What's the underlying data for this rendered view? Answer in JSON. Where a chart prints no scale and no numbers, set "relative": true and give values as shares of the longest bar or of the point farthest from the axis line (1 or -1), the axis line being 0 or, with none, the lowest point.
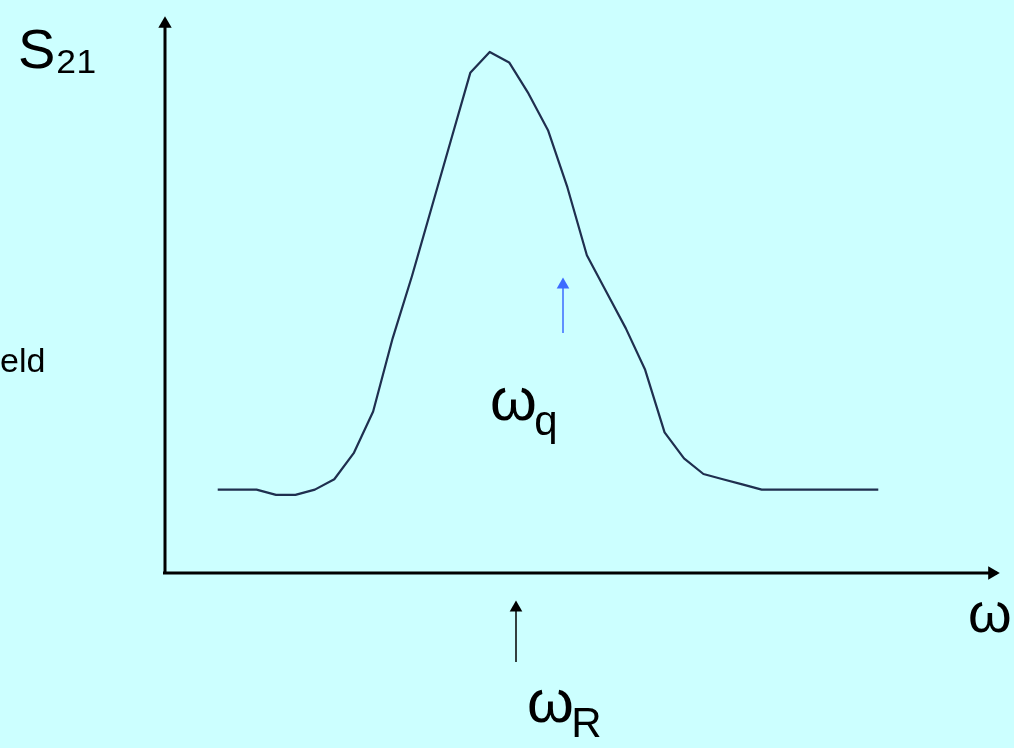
{
  "chart_data": {
    "type": "line",
    "relative": true,
    "ylabel": "S₂₁",
    "xlabel": "ω",
    "categories": [
      null,
      null,
      null,
      null,
      null,
      null,
      null,
      null,
      null,
      null,
      null,
      null,
      null,
      null,
      null,
      null,
      null,
      null,
      null,
      null,
      null,
      null,
      null,
      null,
      null,
      null,
      null,
      null,
      null,
      null,
      null,
      null,
      null,
      null,
      null
    ],
    "values": [
      0.16,
      0.16,
      0.16,
      0.15,
      0.15,
      0.16,
      0.18,
      0.23,
      0.31,
      0.45,
      0.57,
      0.7,
      0.83,
      0.96,
      1.0,
      0.98,
      0.92,
      0.85,
      0.74,
      0.61,
      0.54,
      0.47,
      0.39,
      0.27,
      0.22,
      0.19,
      0.18,
      0.17,
      0.16,
      0.16,
      0.16,
      0.16,
      0.16,
      0.16,
      0.16
    ],
    "color": "#1f2f4f",
    "annotations": [
      "ω$_{q}$",
      "ω$_{R}$",
      "eld"
    ]
  }
}
